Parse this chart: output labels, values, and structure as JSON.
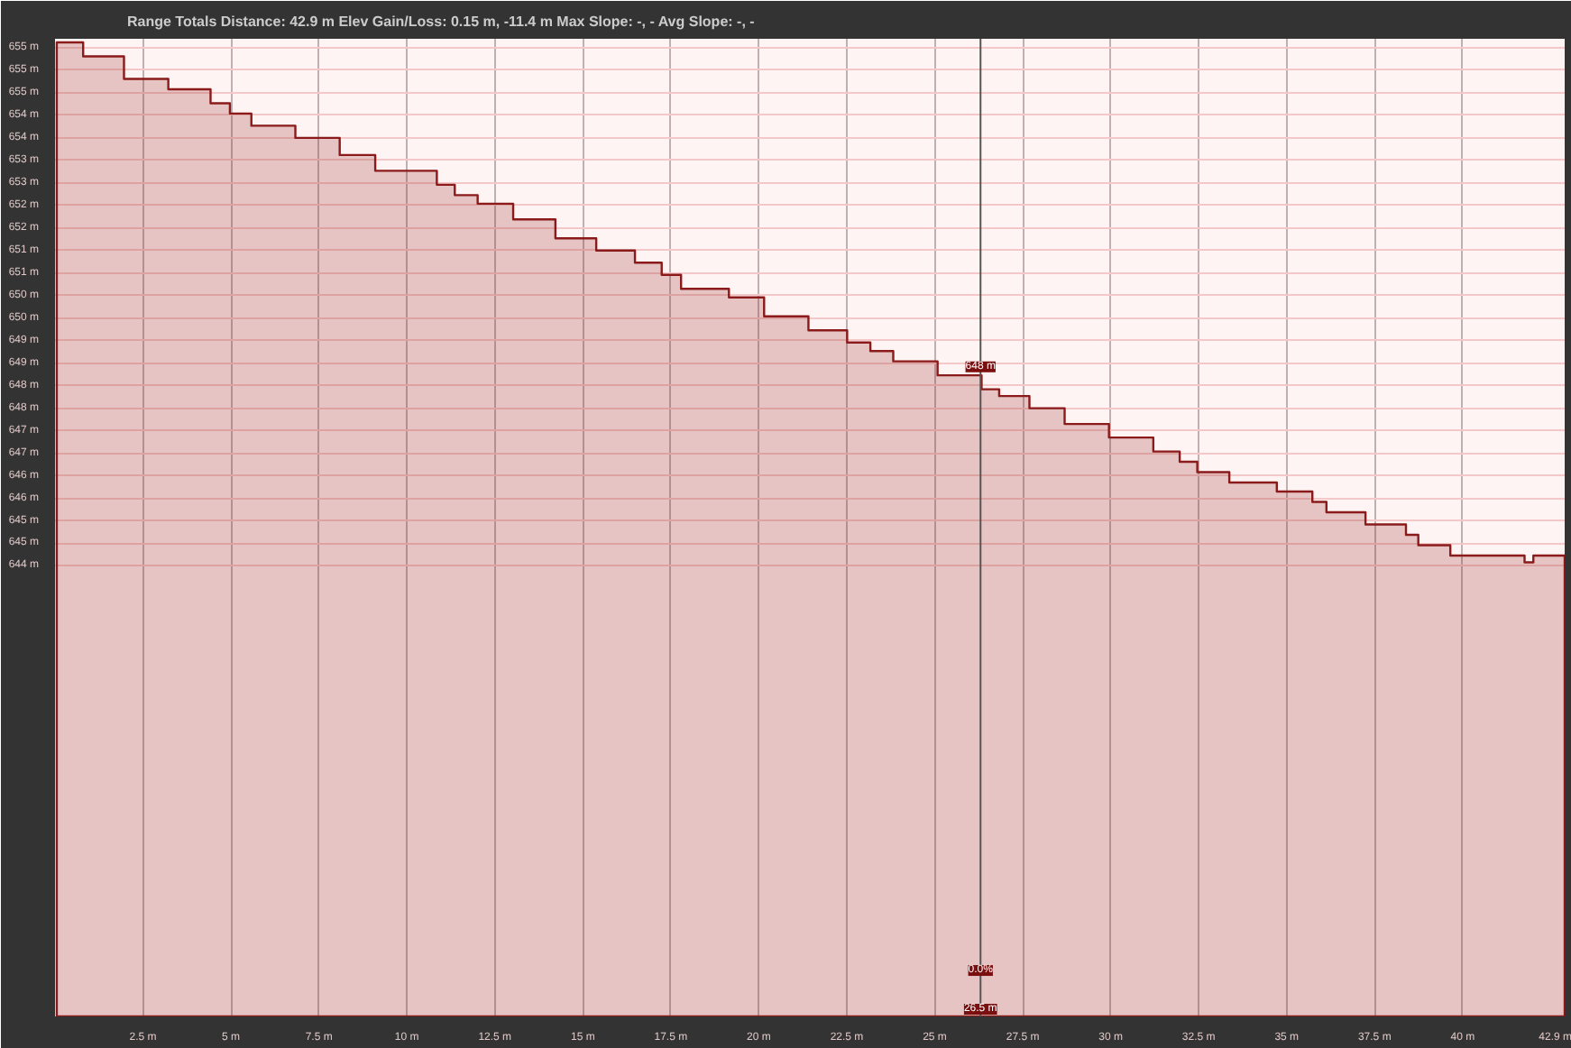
{
  "chart_data": {
    "type": "area",
    "title": "Range Totals   Distance: 42.9 m   Elev Gain/Loss: 0.15 m, -11.4 m   Max Slope: -, -   Avg Slope: -, -",
    "x": [
      0.05,
      0.8,
      1.96,
      3.22,
      4.42,
      4.97,
      5.58,
      6.83,
      8.09,
      9.1,
      10.85,
      11.36,
      12.01,
      13.02,
      14.22,
      15.38,
      16.48,
      17.24,
      17.79,
      19.15,
      20.15,
      21.41,
      22.51,
      23.17,
      23.82,
      25.08,
      26.33,
      26.83,
      27.69,
      28.69,
      29.95,
      31.21,
      31.96,
      32.46,
      33.37,
      34.72,
      35.73,
      36.13,
      37.24,
      38.39,
      38.74,
      39.65,
      41.76,
      42.01,
      42.9
    ],
    "series": [
      {
        "color": "#8b1a1a",
        "values": [
          655.62,
          655.31,
          654.81,
          654.58,
          654.27,
          654.04,
          653.77,
          653.5,
          653.12,
          652.77,
          652.46,
          652.23,
          652.04,
          651.69,
          651.27,
          651.0,
          650.73,
          650.46,
          650.15,
          649.96,
          649.54,
          649.23,
          648.96,
          648.77,
          648.54,
          648.23,
          647.92,
          647.77,
          647.5,
          647.15,
          646.85,
          646.54,
          646.31,
          646.08,
          645.85,
          645.65,
          645.42,
          645.19,
          644.92,
          644.69,
          644.46,
          644.23,
          644.08,
          644.23,
          644.23
        ]
      }
    ],
    "xlim": [
      0,
      42.9
    ],
    "ylim": [
      634.0,
      655.7
    ],
    "xticks": [
      {
        "value": 2.5,
        "label": "2.5 m"
      },
      {
        "value": 5,
        "label": "5 m"
      },
      {
        "value": 7.5,
        "label": "7.5 m"
      },
      {
        "value": 10,
        "label": "10 m"
      },
      {
        "value": 12.5,
        "label": "12.5 m"
      },
      {
        "value": 15,
        "label": "15 m"
      },
      {
        "value": 17.5,
        "label": "17.5 m"
      },
      {
        "value": 20,
        "label": "20 m"
      },
      {
        "value": 22.5,
        "label": "22.5 m"
      },
      {
        "value": 25,
        "label": "25 m"
      },
      {
        "value": 27.5,
        "label": "27.5 m"
      },
      {
        "value": 30,
        "label": "30 m"
      },
      {
        "value": 32.5,
        "label": "32.5 m"
      },
      {
        "value": 35,
        "label": "35 m"
      },
      {
        "value": 37.5,
        "label": "37.5 m"
      },
      {
        "value": 40,
        "label": "40 m"
      },
      {
        "value": 42.9,
        "label": "42.9 m"
      }
    ],
    "yticks": [
      {
        "value": 655.5,
        "label": "655 m"
      },
      {
        "value": 655,
        "label": "655 m"
      },
      {
        "value": 654.5,
        "label": "655 m"
      },
      {
        "value": 654,
        "label": "654 m"
      },
      {
        "value": 653.5,
        "label": "654 m"
      },
      {
        "value": 653,
        "label": "653 m"
      },
      {
        "value": 652.5,
        "label": "653 m"
      },
      {
        "value": 652,
        "label": "652 m"
      },
      {
        "value": 651.5,
        "label": "652 m"
      },
      {
        "value": 651,
        "label": "651 m"
      },
      {
        "value": 650.5,
        "label": "651 m"
      },
      {
        "value": 650,
        "label": "650 m"
      },
      {
        "value": 649.5,
        "label": "650 m"
      },
      {
        "value": 649,
        "label": "649 m"
      },
      {
        "value": 648.5,
        "label": "649 m"
      },
      {
        "value": 648,
        "label": "648 m"
      },
      {
        "value": 647.5,
        "label": "648 m"
      },
      {
        "value": 647,
        "label": "647 m"
      },
      {
        "value": 646.5,
        "label": "647 m"
      },
      {
        "value": 646,
        "label": "646 m"
      },
      {
        "value": 645.5,
        "label": "646 m"
      },
      {
        "value": 645,
        "label": "645 m"
      },
      {
        "value": 644.5,
        "label": "645 m"
      },
      {
        "value": 644,
        "label": "644 m"
      }
    ],
    "ref_lines": [
      {
        "axis": "x",
        "value": 26.3,
        "label": "26.5 m",
        "color": "#555555"
      }
    ],
    "annotations": [
      {
        "text": "648 m",
        "x": 26.3,
        "y": 648.3
      },
      {
        "text": "0.0%",
        "x": 26.3,
        "y": 634.9
      }
    ],
    "grid": true
  }
}
